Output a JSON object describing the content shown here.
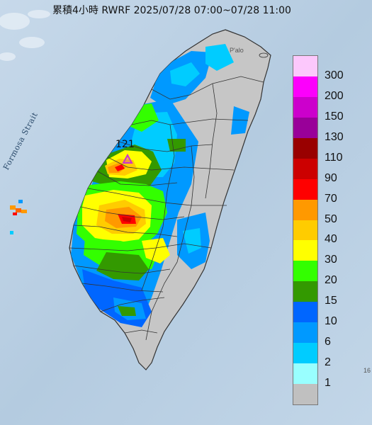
{
  "title": "累積4小時 RWRF 2025/07/28 07:00~07/28 11:00",
  "sea_label": "Formosa Strait",
  "marker": {
    "label": "121",
    "color": "#cc33cc"
  },
  "small_labels": {
    "north_island": "P'alo",
    "southeast": "16"
  },
  "legend": {
    "items": [
      {
        "label": "300",
        "color": "#fcc8fc"
      },
      {
        "label": "200",
        "color": "#fc00fc"
      },
      {
        "label": "150",
        "color": "#cc00cc"
      },
      {
        "label": "130",
        "color": "#990099"
      },
      {
        "label": "110",
        "color": "#990000"
      },
      {
        "label": "90",
        "color": "#cc0000"
      },
      {
        "label": "70",
        "color": "#ff0000"
      },
      {
        "label": "50",
        "color": "#ff9900"
      },
      {
        "label": "40",
        "color": "#ffcc00"
      },
      {
        "label": "30",
        "color": "#ffff00"
      },
      {
        "label": "20",
        "color": "#33ff00"
      },
      {
        "label": "15",
        "color": "#339900"
      },
      {
        "label": "10",
        "color": "#0066ff"
      },
      {
        "label": "6",
        "color": "#0099ff"
      },
      {
        "label": "2",
        "color": "#00ccff"
      },
      {
        "label": "1",
        "color": "#99ffff"
      },
      {
        "label": "",
        "color": "#c0c0c0"
      }
    ]
  },
  "colors": {
    "sea": "#b8cfe2",
    "land": "#c6c6c6",
    "border": "#333333"
  }
}
